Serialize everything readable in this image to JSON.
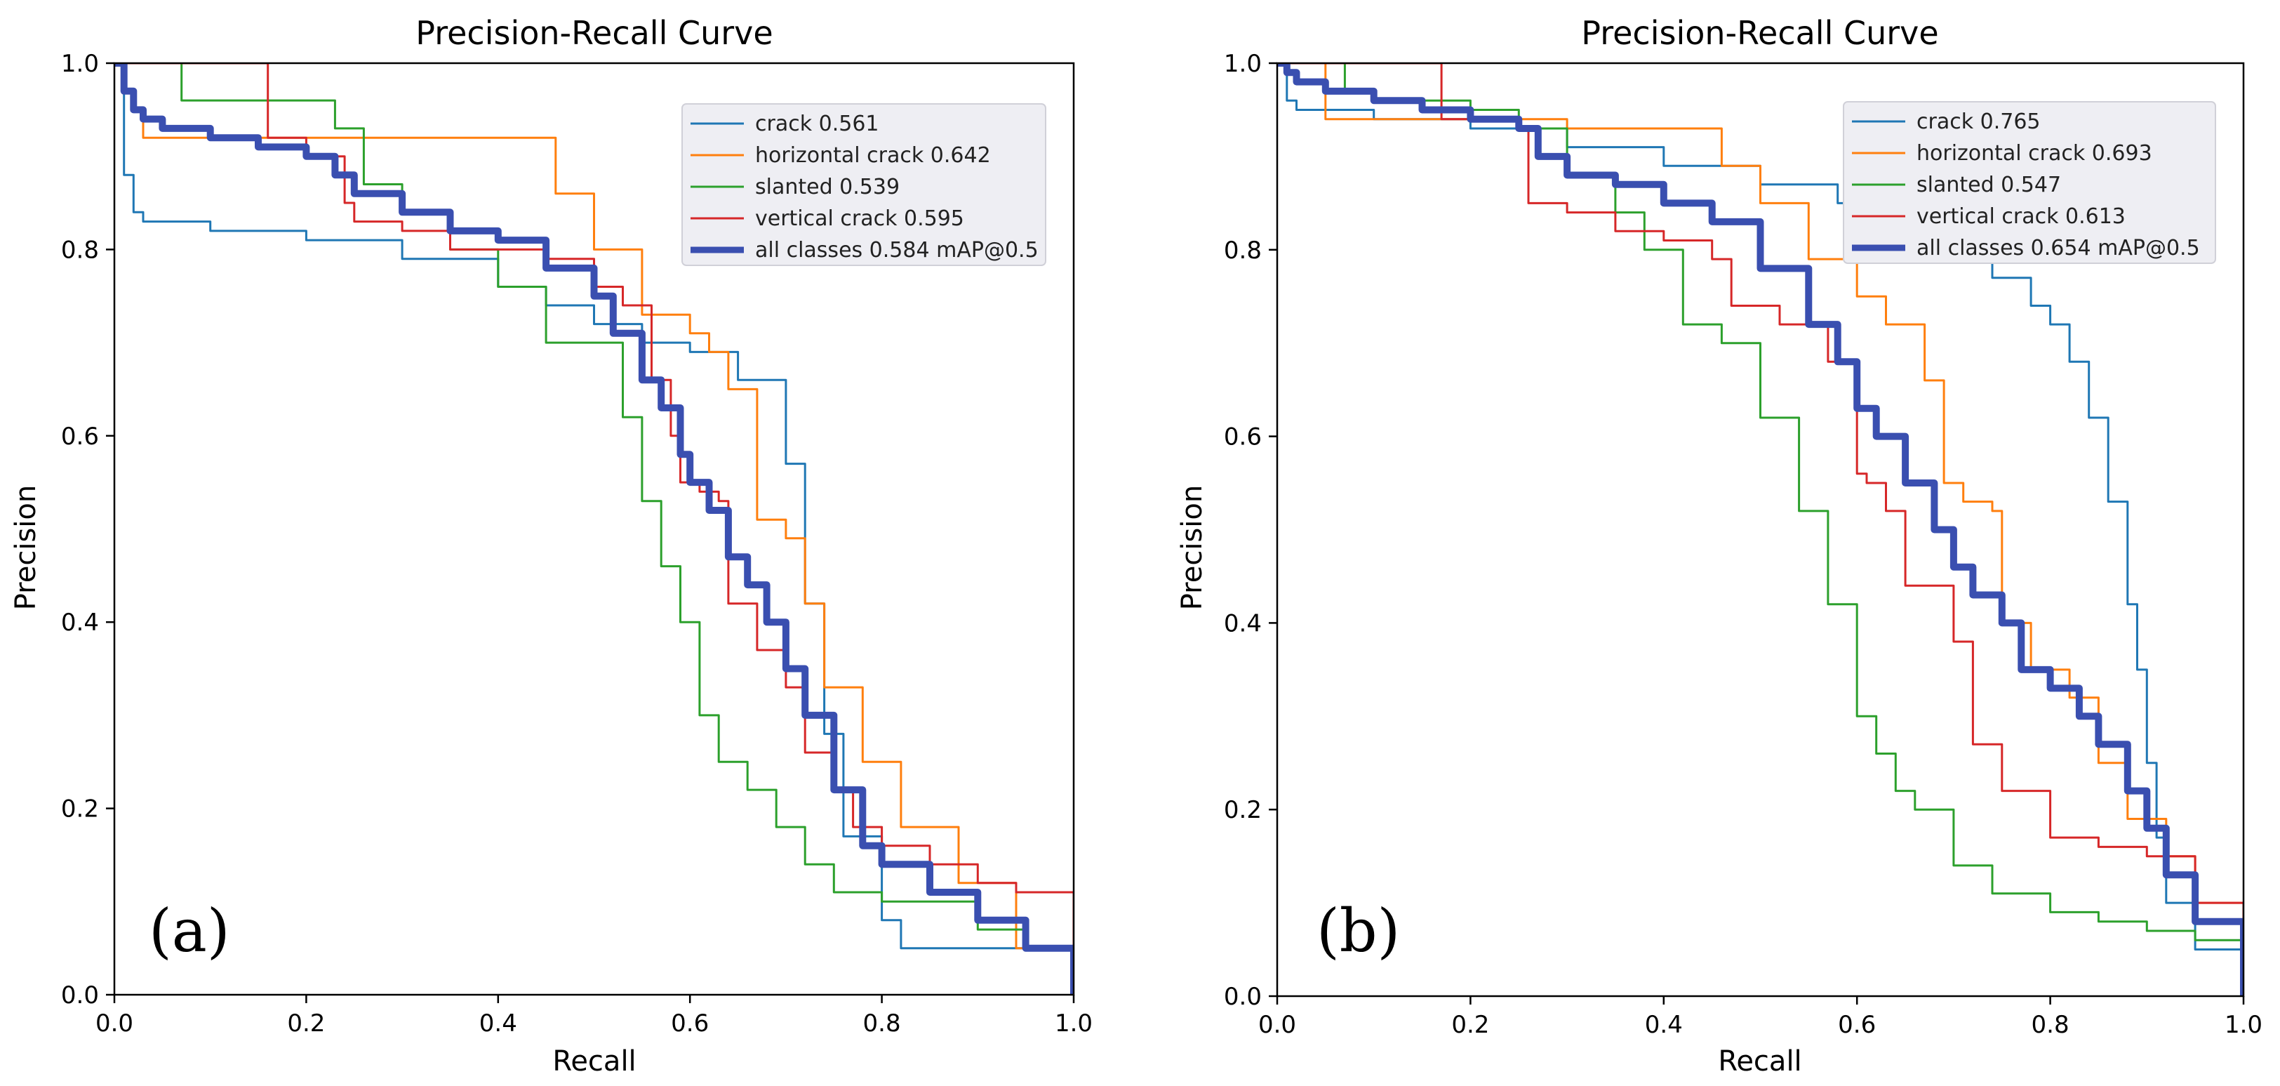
{
  "chart_data": [
    {
      "type": "line",
      "panel_label": "(a)",
      "title": "Precision-Recall Curve",
      "xlabel": "Recall",
      "ylabel": "Precision",
      "xlim": [
        0.0,
        1.0
      ],
      "ylim": [
        0.0,
        1.0
      ],
      "x_ticks": [
        "0.0",
        "0.2",
        "0.4",
        "0.6",
        "0.8",
        "1.0"
      ],
      "y_ticks": [
        "0.0",
        "0.2",
        "0.4",
        "0.6",
        "0.8",
        "1.0"
      ],
      "legend_position": "top-right",
      "series": [
        {
          "name": "crack 0.561",
          "color": "#1f77b4",
          "width": 3,
          "x": [
            0.0,
            0.01,
            0.02,
            0.03,
            0.1,
            0.2,
            0.3,
            0.4,
            0.45,
            0.5,
            0.55,
            0.6,
            0.65,
            0.7,
            0.72,
            0.74,
            0.76,
            0.8,
            0.82,
            1.0
          ],
          "y": [
            1.0,
            0.88,
            0.84,
            0.83,
            0.82,
            0.81,
            0.79,
            0.76,
            0.74,
            0.72,
            0.7,
            0.69,
            0.66,
            0.57,
            0.42,
            0.28,
            0.17,
            0.08,
            0.05,
            0.0
          ]
        },
        {
          "name": "horizontal crack 0.642",
          "color": "#ff7f0e",
          "width": 3,
          "x": [
            0.0,
            0.01,
            0.02,
            0.03,
            0.1,
            0.2,
            0.3,
            0.42,
            0.46,
            0.5,
            0.55,
            0.6,
            0.62,
            0.64,
            0.67,
            0.7,
            0.72,
            0.74,
            0.78,
            0.82,
            0.88,
            0.94,
            1.0
          ],
          "y": [
            1.0,
            0.97,
            0.95,
            0.92,
            0.92,
            0.92,
            0.92,
            0.92,
            0.86,
            0.8,
            0.73,
            0.71,
            0.69,
            0.65,
            0.51,
            0.49,
            0.42,
            0.33,
            0.25,
            0.18,
            0.12,
            0.05,
            0.0
          ]
        },
        {
          "name": "slanted 0.539",
          "color": "#2ca02c",
          "width": 3,
          "x": [
            0.0,
            0.03,
            0.07,
            0.15,
            0.23,
            0.26,
            0.3,
            0.35,
            0.4,
            0.45,
            0.5,
            0.53,
            0.55,
            0.57,
            0.59,
            0.61,
            0.63,
            0.66,
            0.69,
            0.72,
            0.75,
            0.8,
            0.9,
            0.95,
            1.0
          ],
          "y": [
            1.0,
            1.0,
            0.96,
            0.96,
            0.93,
            0.87,
            0.84,
            0.8,
            0.76,
            0.7,
            0.7,
            0.62,
            0.53,
            0.46,
            0.4,
            0.3,
            0.25,
            0.22,
            0.18,
            0.14,
            0.11,
            0.1,
            0.07,
            0.05,
            0.0
          ]
        },
        {
          "name": "vertical crack 0.595",
          "color": "#d62728",
          "width": 3,
          "x": [
            0.0,
            0.05,
            0.15,
            0.16,
            0.2,
            0.24,
            0.25,
            0.3,
            0.35,
            0.45,
            0.5,
            0.53,
            0.56,
            0.58,
            0.59,
            0.61,
            0.63,
            0.64,
            0.67,
            0.7,
            0.72,
            0.75,
            0.77,
            0.8,
            0.85,
            0.9,
            0.94,
            1.0
          ],
          "y": [
            1.0,
            1.0,
            1.0,
            0.92,
            0.9,
            0.85,
            0.83,
            0.82,
            0.8,
            0.79,
            0.76,
            0.74,
            0.66,
            0.6,
            0.55,
            0.54,
            0.53,
            0.42,
            0.37,
            0.33,
            0.26,
            0.22,
            0.18,
            0.16,
            0.14,
            0.12,
            0.11,
            0.0
          ]
        },
        {
          "name": "all classes 0.584 mAP@0.5",
          "color": "#3a4fb0",
          "width": 10,
          "x": [
            0.0,
            0.01,
            0.02,
            0.03,
            0.05,
            0.1,
            0.15,
            0.2,
            0.23,
            0.25,
            0.3,
            0.35,
            0.4,
            0.45,
            0.5,
            0.52,
            0.55,
            0.57,
            0.59,
            0.6,
            0.62,
            0.64,
            0.66,
            0.68,
            0.7,
            0.72,
            0.75,
            0.78,
            0.8,
            0.85,
            0.9,
            0.95,
            1.0
          ],
          "y": [
            1.0,
            0.97,
            0.95,
            0.94,
            0.93,
            0.92,
            0.91,
            0.9,
            0.88,
            0.86,
            0.84,
            0.82,
            0.81,
            0.78,
            0.75,
            0.71,
            0.66,
            0.63,
            0.58,
            0.55,
            0.52,
            0.47,
            0.44,
            0.4,
            0.35,
            0.3,
            0.22,
            0.16,
            0.14,
            0.11,
            0.08,
            0.05,
            0.0
          ]
        }
      ]
    },
    {
      "type": "line",
      "panel_label": "(b)",
      "title": "Precision-Recall Curve",
      "xlabel": "Recall",
      "ylabel": "Precision",
      "xlim": [
        0.0,
        1.0
      ],
      "ylim": [
        0.0,
        1.0
      ],
      "x_ticks": [
        "0.0",
        "0.2",
        "0.4",
        "0.6",
        "0.8",
        "1.0"
      ],
      "y_ticks": [
        "0.0",
        "0.2",
        "0.4",
        "0.6",
        "0.8",
        "1.0"
      ],
      "legend_position": "top-right",
      "series": [
        {
          "name": "crack 0.765",
          "color": "#1f77b4",
          "width": 3,
          "x": [
            0.0,
            0.01,
            0.02,
            0.1,
            0.2,
            0.3,
            0.4,
            0.5,
            0.58,
            0.74,
            0.78,
            0.8,
            0.82,
            0.84,
            0.86,
            0.88,
            0.89,
            0.9,
            0.91,
            0.92,
            0.95,
            1.0
          ],
          "y": [
            1.0,
            0.96,
            0.95,
            0.94,
            0.93,
            0.91,
            0.89,
            0.87,
            0.85,
            0.77,
            0.74,
            0.72,
            0.68,
            0.62,
            0.53,
            0.42,
            0.35,
            0.25,
            0.17,
            0.1,
            0.05,
            0.0
          ]
        },
        {
          "name": "horizontal crack 0.693",
          "color": "#ff7f0e",
          "width": 3,
          "x": [
            0.0,
            0.03,
            0.05,
            0.2,
            0.3,
            0.43,
            0.46,
            0.5,
            0.55,
            0.6,
            0.63,
            0.67,
            0.69,
            0.71,
            0.74,
            0.75,
            0.78,
            0.82,
            0.85,
            0.88,
            0.92,
            0.95,
            1.0
          ],
          "y": [
            1.0,
            1.0,
            0.94,
            0.94,
            0.93,
            0.93,
            0.89,
            0.85,
            0.79,
            0.75,
            0.72,
            0.66,
            0.55,
            0.53,
            0.52,
            0.4,
            0.35,
            0.32,
            0.25,
            0.19,
            0.15,
            0.1,
            0.0
          ]
        },
        {
          "name": "slanted 0.547",
          "color": "#2ca02c",
          "width": 3,
          "x": [
            0.0,
            0.04,
            0.07,
            0.1,
            0.2,
            0.25,
            0.3,
            0.35,
            0.38,
            0.42,
            0.46,
            0.5,
            0.54,
            0.57,
            0.6,
            0.62,
            0.64,
            0.66,
            0.7,
            0.74,
            0.8,
            0.85,
            0.9,
            0.95,
            1.0
          ],
          "y": [
            1.0,
            1.0,
            0.97,
            0.96,
            0.95,
            0.93,
            0.88,
            0.84,
            0.8,
            0.72,
            0.7,
            0.62,
            0.52,
            0.42,
            0.3,
            0.26,
            0.22,
            0.2,
            0.14,
            0.11,
            0.09,
            0.08,
            0.07,
            0.06,
            0.0
          ]
        },
        {
          "name": "vertical crack 0.613",
          "color": "#d62728",
          "width": 3,
          "x": [
            0.0,
            0.05,
            0.16,
            0.17,
            0.25,
            0.26,
            0.3,
            0.35,
            0.4,
            0.45,
            0.47,
            0.52,
            0.57,
            0.6,
            0.61,
            0.63,
            0.65,
            0.7,
            0.72,
            0.75,
            0.8,
            0.85,
            0.9,
            0.95,
            1.0
          ],
          "y": [
            1.0,
            1.0,
            1.0,
            0.94,
            0.93,
            0.85,
            0.84,
            0.82,
            0.81,
            0.79,
            0.74,
            0.72,
            0.68,
            0.56,
            0.55,
            0.52,
            0.44,
            0.38,
            0.27,
            0.22,
            0.17,
            0.16,
            0.15,
            0.1,
            0.0
          ]
        },
        {
          "name": "all classes 0.654 mAP@0.5",
          "color": "#3a4fb0",
          "width": 10,
          "x": [
            0.0,
            0.01,
            0.02,
            0.05,
            0.1,
            0.15,
            0.2,
            0.25,
            0.27,
            0.3,
            0.35,
            0.4,
            0.45,
            0.5,
            0.55,
            0.58,
            0.6,
            0.62,
            0.65,
            0.68,
            0.7,
            0.72,
            0.75,
            0.77,
            0.8,
            0.83,
            0.85,
            0.88,
            0.9,
            0.92,
            0.95,
            1.0
          ],
          "y": [
            1.0,
            0.99,
            0.98,
            0.97,
            0.96,
            0.95,
            0.94,
            0.93,
            0.9,
            0.88,
            0.87,
            0.85,
            0.83,
            0.78,
            0.72,
            0.68,
            0.63,
            0.6,
            0.55,
            0.5,
            0.46,
            0.43,
            0.4,
            0.35,
            0.33,
            0.3,
            0.27,
            0.22,
            0.18,
            0.13,
            0.08,
            0.0
          ]
        }
      ]
    }
  ]
}
